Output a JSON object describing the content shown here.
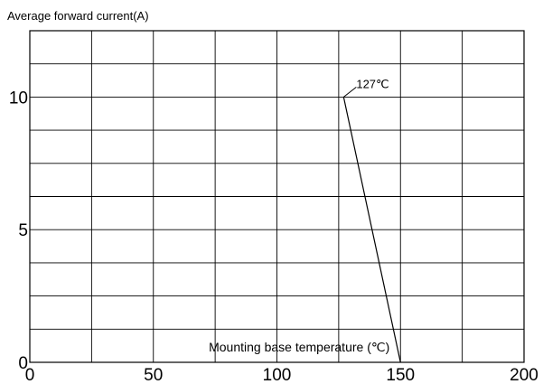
{
  "chart_data": {
    "type": "line",
    "title": "",
    "ylabel": "Average forward current(A)",
    "xlabel": "Mounting base temperature (℃)",
    "xlim": [
      0,
      200
    ],
    "ylim": [
      0,
      12.5
    ],
    "x_ticks": [
      0,
      50,
      100,
      150,
      200
    ],
    "y_ticks": [
      0,
      5,
      10
    ],
    "x_grid": [
      0,
      25,
      50,
      75,
      100,
      125,
      150,
      175,
      200
    ],
    "y_grid": [
      0,
      1.25,
      2.5,
      3.75,
      5,
      6.25,
      7.5,
      8.75,
      10,
      11.25,
      12.5
    ],
    "grid": true,
    "series": [
      {
        "x": [
          127,
          150
        ],
        "y": [
          10,
          0
        ]
      }
    ],
    "annotations": [
      {
        "text": "127℃",
        "x": 127,
        "y": 10
      }
    ]
  }
}
